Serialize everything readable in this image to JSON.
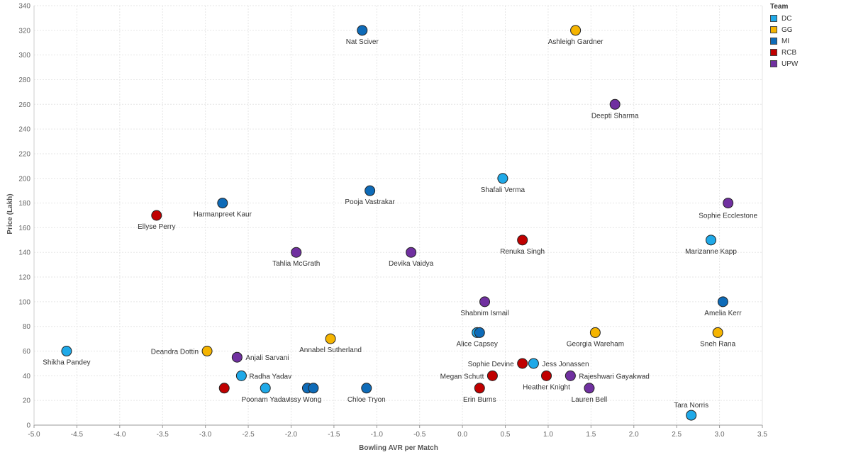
{
  "chart_data": {
    "type": "scatter",
    "title": "",
    "xlabel": "Bowling AVR per Match",
    "ylabel": "Price (Lakh)",
    "xlim": [
      -5.0,
      3.5
    ],
    "ylim": [
      0,
      340
    ],
    "x_ticks": [
      "-5.0",
      "-4.5",
      "-4.0",
      "-3.5",
      "-3.0",
      "-2.5",
      "-2.0",
      "-1.5",
      "-1.0",
      "-0.5",
      "0.0",
      "0.5",
      "1.0",
      "1.5",
      "2.0",
      "2.5",
      "3.0",
      "3.5"
    ],
    "y_ticks": [
      "0",
      "20",
      "40",
      "60",
      "80",
      "100",
      "120",
      "140",
      "160",
      "180",
      "200",
      "220",
      "240",
      "260",
      "280",
      "300",
      "320",
      "340"
    ],
    "legend": {
      "title": "Team",
      "entries": [
        {
          "name": "DC",
          "color": "#1fa9e8"
        },
        {
          "name": "GG",
          "color": "#f5b400"
        },
        {
          "name": "MI",
          "color": "#0e6bb8"
        },
        {
          "name": "RCB",
          "color": "#c00000"
        },
        {
          "name": "UPW",
          "color": "#7030a0"
        }
      ]
    },
    "points": [
      {
        "x": -1.17,
        "y": 320,
        "team": "MI",
        "label": "Nat Sciver"
      },
      {
        "x": 1.32,
        "y": 320,
        "team": "GG",
        "label": "Ashleigh Gardner"
      },
      {
        "x": 1.78,
        "y": 260,
        "team": "UPW",
        "label": "Deepti Sharma"
      },
      {
        "x": 0.47,
        "y": 200,
        "team": "DC",
        "label": "Shafali Verma"
      },
      {
        "x": -1.08,
        "y": 190,
        "team": "MI",
        "label": "Pooja Vastrakar"
      },
      {
        "x": -2.8,
        "y": 180,
        "team": "MI",
        "label": "Harmanpreet Kaur"
      },
      {
        "x": 3.1,
        "y": 180,
        "team": "UPW",
        "label": "Sophie Ecclestone"
      },
      {
        "x": -3.57,
        "y": 170,
        "team": "RCB",
        "label": "Ellyse Perry"
      },
      {
        "x": 0.7,
        "y": 150,
        "team": "RCB",
        "label": "Renuka Singh"
      },
      {
        "x": 2.9,
        "y": 150,
        "team": "DC",
        "label": "Marizanne Kapp"
      },
      {
        "x": -1.94,
        "y": 140,
        "team": "UPW",
        "label": "Tahlia McGrath"
      },
      {
        "x": -0.6,
        "y": 140,
        "team": "UPW",
        "label": "Devika Vaidya"
      },
      {
        "x": 0.26,
        "y": 100,
        "team": "UPW",
        "label": "Shabnim Ismail"
      },
      {
        "x": 3.04,
        "y": 100,
        "team": "MI",
        "label": "Amelia Kerr"
      },
      {
        "x": 0.17,
        "y": 75,
        "team": "DC",
        "label": "Alice Capsey"
      },
      {
        "x": 0.2,
        "y": 75,
        "team": "MI",
        "label": ""
      },
      {
        "x": 1.55,
        "y": 75,
        "team": "GG",
        "label": "Georgia Wareham"
      },
      {
        "x": 2.98,
        "y": 75,
        "team": "GG",
        "label": "Sneh Rana"
      },
      {
        "x": -1.54,
        "y": 70,
        "team": "GG",
        "label": "Annabel Sutherland"
      },
      {
        "x": -4.62,
        "y": 60,
        "team": "DC",
        "label": "Shikha Pandey"
      },
      {
        "x": -2.98,
        "y": 60,
        "team": "GG",
        "label": "Deandra Dottin"
      },
      {
        "x": -2.63,
        "y": 55,
        "team": "UPW",
        "label": "Anjali Sarvani"
      },
      {
        "x": 0.7,
        "y": 50,
        "team": "RCB",
        "label": "Sophie Devine"
      },
      {
        "x": 0.83,
        "y": 50,
        "team": "DC",
        "label": "Jess Jonassen"
      },
      {
        "x": -2.58,
        "y": 40,
        "team": "DC",
        "label": "Radha Yadav"
      },
      {
        "x": 0.35,
        "y": 40,
        "team": "RCB",
        "label": "Megan Schutt"
      },
      {
        "x": 0.98,
        "y": 40,
        "team": "RCB",
        "label": "Heather Knight"
      },
      {
        "x": 1.26,
        "y": 40,
        "team": "UPW",
        "label": "Rajeshwari Gayakwad"
      },
      {
        "x": -2.78,
        "y": 30,
        "team": "RCB",
        "label": ""
      },
      {
        "x": -2.3,
        "y": 30,
        "team": "DC",
        "label": "Poonam Yadav"
      },
      {
        "x": -1.81,
        "y": 30,
        "team": "MI",
        "label": ""
      },
      {
        "x": -1.74,
        "y": 30,
        "team": "MI",
        "label": "Issy Wong"
      },
      {
        "x": -1.12,
        "y": 30,
        "team": "MI",
        "label": "Chloe Tryon"
      },
      {
        "x": 0.2,
        "y": 30,
        "team": "RCB",
        "label": "Erin Burns"
      },
      {
        "x": 1.48,
        "y": 30,
        "team": "UPW",
        "label": "Lauren Bell"
      },
      {
        "x": 2.67,
        "y": 8,
        "team": "DC",
        "label": "Tara Norris"
      }
    ]
  }
}
